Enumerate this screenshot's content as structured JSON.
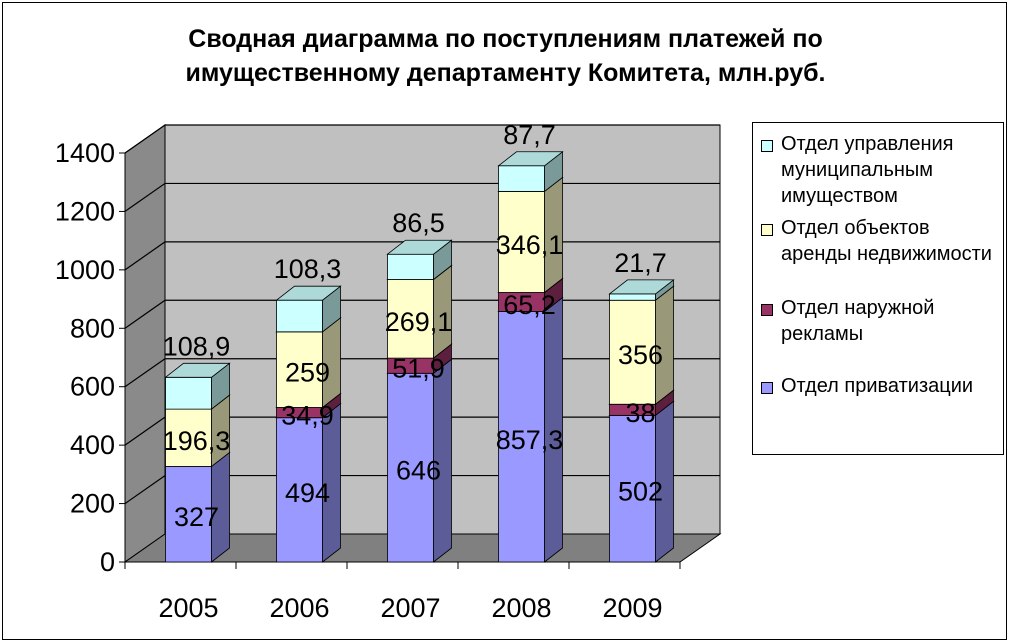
{
  "chart_data": {
    "type": "bar",
    "stacked": true,
    "three_d": true,
    "title_lines": [
      "Сводная диаграмма по поступлениям  платежей по",
      "имущественному департаменту Комитета, млн.руб."
    ],
    "categories": [
      "2005",
      "2006",
      "2007",
      "2008",
      "2009"
    ],
    "ylim": [
      0,
      1400
    ],
    "yticks": [
      "0",
      "200",
      "400",
      "600",
      "800",
      "1000",
      "1200",
      "1400"
    ],
    "grid": true,
    "legend_position": "right",
    "series": [
      {
        "name": "Отдел приватизации",
        "color": "#9999ff",
        "values": [
          327,
          494,
          646,
          857.3,
          502
        ],
        "labels": [
          "327",
          "494",
          "646",
          "857,3",
          "502"
        ]
      },
      {
        "name": "Отдел наружной рекламы",
        "color": "#993366",
        "values": [
          0,
          34.9,
          51.9,
          65.2,
          38
        ],
        "labels": [
          "",
          "34,9",
          "51,9",
          "65,2",
          "38"
        ]
      },
      {
        "name": "Отдел объектов аренды недвижимости",
        "color": "#ffffcc",
        "values": [
          196.3,
          259,
          269.1,
          346.1,
          356
        ],
        "labels": [
          "196,3",
          "259",
          "269,1",
          "346,1",
          "356"
        ]
      },
      {
        "name": "Отдел управления муниципальным имуществом",
        "color": "#ccffff",
        "values": [
          108.9,
          108.3,
          86.5,
          87.7,
          21.7
        ],
        "labels": [
          "108,9",
          "108,3",
          "86,5",
          "87,7",
          "21,7"
        ]
      }
    ],
    "legend_items": [
      {
        "label": "Отдел управления муниципальным имуществом",
        "color": "#ccffff"
      },
      {
        "label": "Отдел объектов аренды недвижимости",
        "color": "#ffffcc"
      },
      {
        "label": "Отдел наружной рекламы",
        "color": "#993366"
      },
      {
        "label": "Отдел приватизации",
        "color": "#9999ff"
      }
    ],
    "wall_color": "#c0c0c0",
    "floor_color": "#808080"
  }
}
